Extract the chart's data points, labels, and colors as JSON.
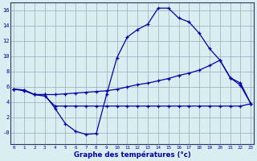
{
  "xlabel": "Graphe des températures (°c)",
  "background_color": "#d8eef0",
  "grid_color": "#99aabb",
  "line_color": "#0000aa",
  "x_ticks": [
    0,
    1,
    2,
    3,
    4,
    5,
    6,
    7,
    8,
    9,
    10,
    11,
    12,
    13,
    14,
    15,
    16,
    17,
    18,
    19,
    20,
    21,
    22,
    23
  ],
  "y_ticks": [
    0,
    2,
    4,
    6,
    8,
    10,
    12,
    14,
    16
  ],
  "y_tick_labels": [
    "-0",
    "2",
    "4",
    "6",
    "8",
    "10",
    "12",
    "14",
    "16"
  ],
  "ylim": [
    -1.5,
    17.0
  ],
  "xlim": [
    -0.3,
    23.3
  ],
  "line1_x": [
    0,
    1,
    2,
    3,
    4,
    5,
    6,
    7,
    8,
    9,
    10,
    11,
    12,
    13,
    14,
    15,
    16,
    17,
    18,
    19,
    20,
    21,
    22,
    23
  ],
  "line1_y": [
    5.7,
    5.6,
    5.0,
    5.0,
    3.2,
    1.2,
    0.2,
    -0.2,
    -0.1,
    5.0,
    9.8,
    12.5,
    13.5,
    14.2,
    16.3,
    16.3,
    15.0,
    14.5,
    13.0,
    11.0,
    9.5,
    7.2,
    6.2,
    3.8
  ],
  "line2_x": [
    0,
    1,
    2,
    3,
    4,
    5,
    6,
    7,
    8,
    9,
    10,
    11,
    12,
    13,
    14,
    15,
    16,
    17,
    18,
    19,
    20,
    21,
    22,
    23
  ],
  "line2_y": [
    5.7,
    5.6,
    5.0,
    5.0,
    5.0,
    5.1,
    5.2,
    5.3,
    5.4,
    5.5,
    5.7,
    6.0,
    6.3,
    6.5,
    6.8,
    7.1,
    7.5,
    7.8,
    8.2,
    8.8,
    9.5,
    7.2,
    6.5,
    3.8
  ],
  "line3_x": [
    0,
    1,
    2,
    3,
    4,
    5,
    6,
    7,
    8,
    9,
    10,
    11,
    12,
    13,
    14,
    15,
    16,
    17,
    18,
    19,
    20,
    21,
    22,
    23
  ],
  "line3_y": [
    5.7,
    5.5,
    5.0,
    4.8,
    3.5,
    3.5,
    3.5,
    3.5,
    3.5,
    3.5,
    3.5,
    3.5,
    3.5,
    3.5,
    3.5,
    3.5,
    3.5,
    3.5,
    3.5,
    3.5,
    3.5,
    3.5,
    3.5,
    3.8
  ]
}
